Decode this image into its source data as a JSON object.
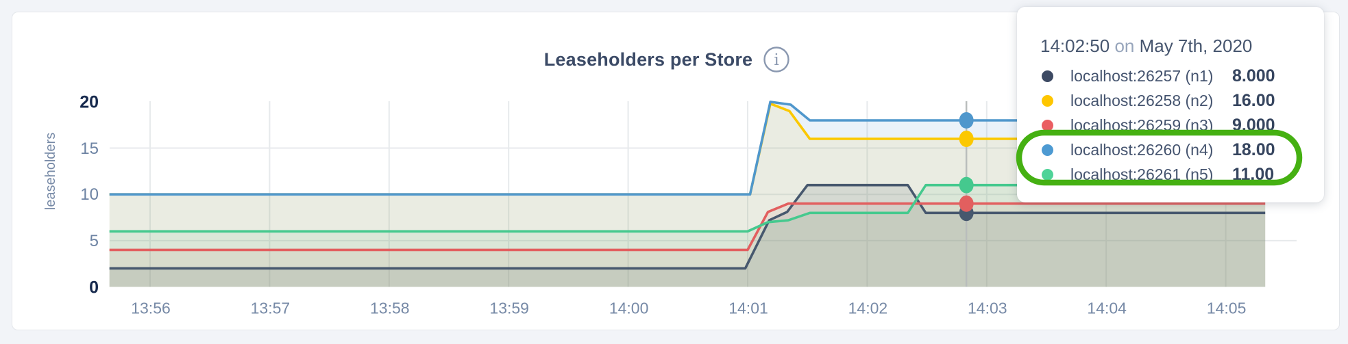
{
  "card": {
    "title": "Leaseholders per Store"
  },
  "icons": {
    "info_glyph": "i"
  },
  "colors": {
    "page_bg": "#f2f4f8",
    "card_border": "#e3e6ea",
    "title": "#3b4a66",
    "axis_tick": "#6d83a3",
    "axis_tick_strong": "#16294d",
    "gridline": "#e7eaec",
    "hover_line": "#b9bdbc",
    "info_icon": "#8a98b0",
    "annotation": "#45b012"
  },
  "chart_data": {
    "type": "area",
    "title": "Leaseholders per Store",
    "xlabel": "",
    "ylabel": "leaseholders",
    "ylim": [
      0,
      20
    ],
    "y_ticks": [
      0,
      5,
      10,
      15,
      20
    ],
    "x_ticks": [
      "13:56",
      "13:57",
      "13:58",
      "13:59",
      "14:00",
      "14:01",
      "14:02",
      "14:03",
      "14:04",
      "14:05"
    ],
    "grid": "on",
    "legend_position": "tooltip-overlay",
    "x_unit": "minutes after 13:56",
    "x_range": [
      -0.34,
      9.33
    ],
    "series": [
      {
        "id": "n1",
        "name": "localhost:26257 (n1)",
        "color": "#47586e",
        "points": [
          [
            -0.34,
            2
          ],
          [
            4.98,
            2
          ],
          [
            5.18,
            7.2
          ],
          [
            5.33,
            8.1
          ],
          [
            5.5,
            11
          ],
          [
            6.34,
            11
          ],
          [
            6.49,
            8
          ],
          [
            9.33,
            8
          ]
        ]
      },
      {
        "id": "n2",
        "name": "localhost:26258 (n2)",
        "color": "#fbc800",
        "points": [
          [
            -0.34,
            10
          ],
          [
            5.02,
            10
          ],
          [
            5.19,
            19.8
          ],
          [
            5.35,
            19.0
          ],
          [
            5.52,
            16
          ],
          [
            9.33,
            16
          ]
        ]
      },
      {
        "id": "n3",
        "name": "localhost:26259 (n3)",
        "color": "#e25f5f",
        "points": [
          [
            -0.34,
            4
          ],
          [
            5.0,
            4
          ],
          [
            5.17,
            8.1
          ],
          [
            5.34,
            9
          ],
          [
            9.33,
            9
          ]
        ]
      },
      {
        "id": "n4",
        "name": "localhost:26260 (n4)",
        "color": "#4f97cc",
        "points": [
          [
            -0.34,
            10
          ],
          [
            5.02,
            10
          ],
          [
            5.19,
            20
          ],
          [
            5.36,
            19.7
          ],
          [
            5.52,
            18
          ],
          [
            9.33,
            18
          ]
        ]
      },
      {
        "id": "n5",
        "name": "localhost:26261 (n5)",
        "color": "#45c98e",
        "points": [
          [
            -0.34,
            6
          ],
          [
            5.0,
            6
          ],
          [
            5.17,
            7
          ],
          [
            5.34,
            7.2
          ],
          [
            5.52,
            8
          ],
          [
            6.34,
            8
          ],
          [
            6.49,
            11
          ],
          [
            9.33,
            11
          ]
        ]
      }
    ],
    "hover": {
      "t": 6.83,
      "time": "14:02:50",
      "date": "May 7th, 2020"
    }
  },
  "tooltip": {
    "time": "14:02:50",
    "connector": " on ",
    "date": "May 7th, 2020",
    "rows": [
      {
        "series_id": "n1",
        "label": "localhost:26257 (n1)",
        "value": "8.000",
        "color": "#3d4a63"
      },
      {
        "series_id": "n2",
        "label": "localhost:26258 (n2)",
        "value": "16.00",
        "color": "#fec600"
      },
      {
        "series_id": "n3",
        "label": "localhost:26259 (n3)",
        "value": "9.000",
        "color": "#ea5e62"
      },
      {
        "series_id": "n4",
        "label": "localhost:26260 (n4)",
        "value": "18.00",
        "color": "#4d9ad2"
      },
      {
        "series_id": "n5",
        "label": "localhost:26261 (n5)",
        "value": "11.00",
        "color": "#4fd398"
      }
    ]
  },
  "annotation": {
    "type": "highlight-outline",
    "color": "#45b012",
    "rows_highlighted": [
      "localhost:26260 (n4)",
      "localhost:26261 (n5)"
    ]
  }
}
